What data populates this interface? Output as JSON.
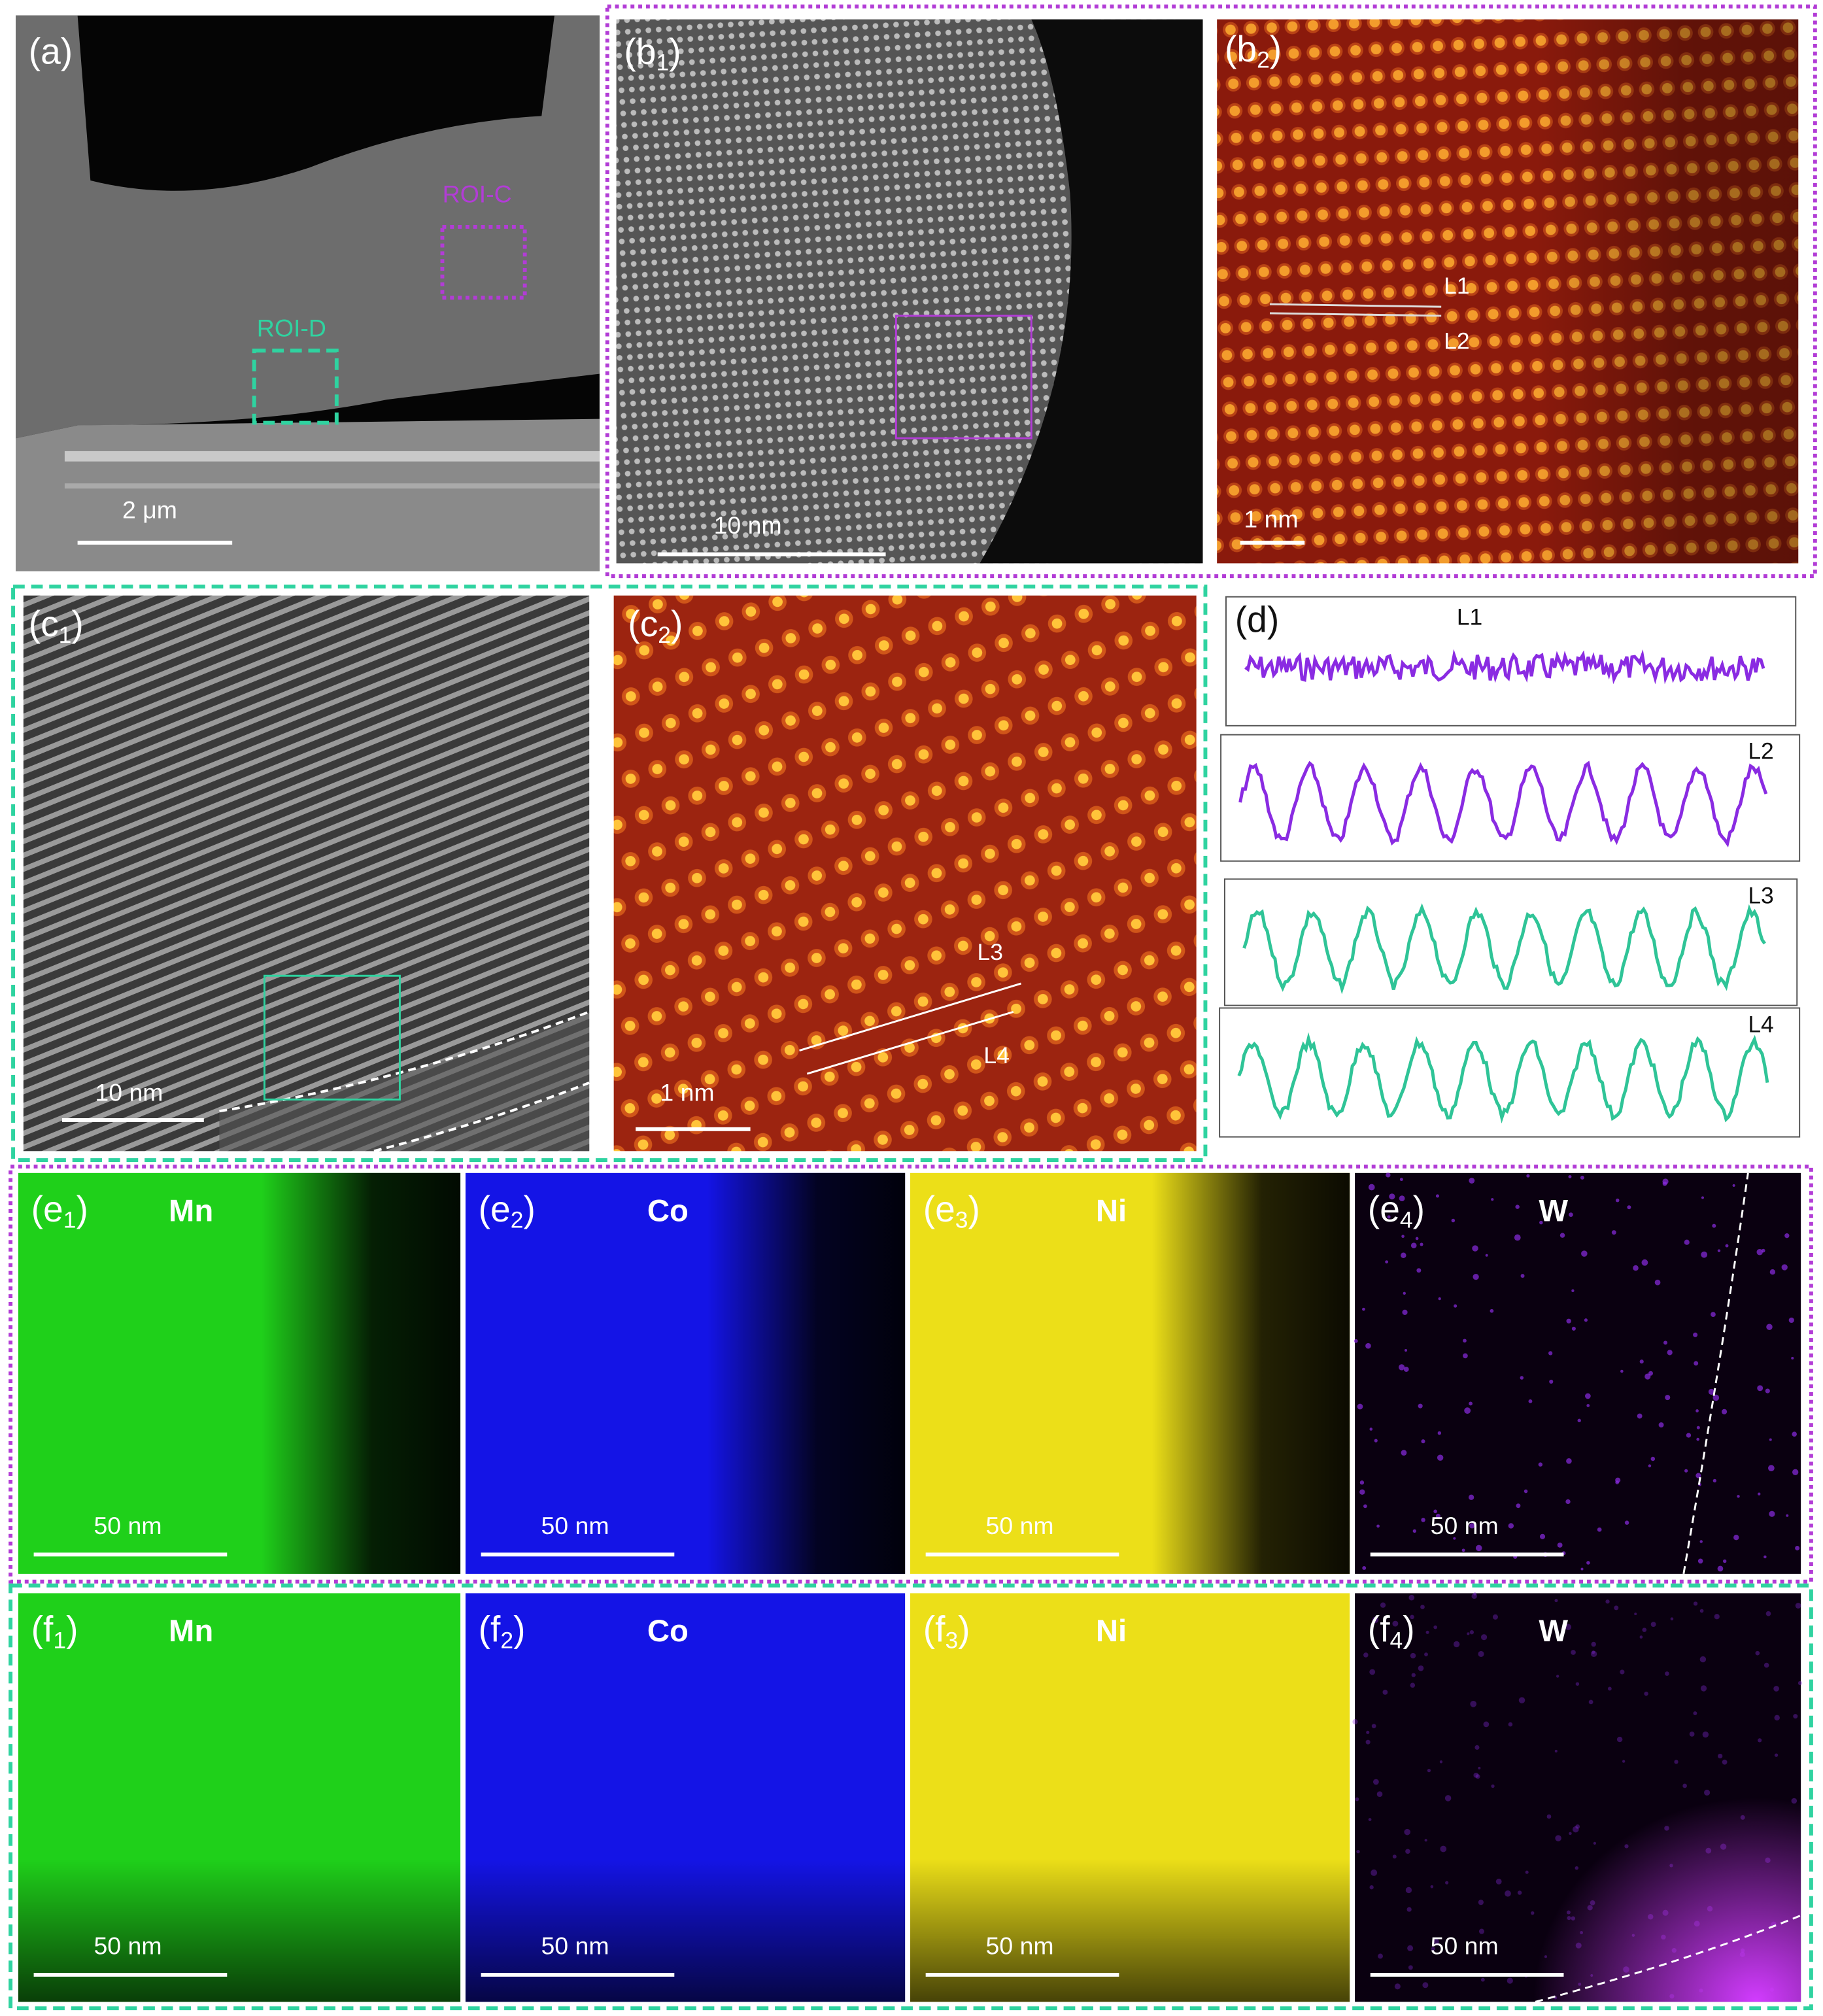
{
  "panels": {
    "a": {
      "label": [
        "(a)"
      ],
      "roi_c": "ROI-C",
      "roi_d": "ROI-D",
      "scale_bar": "2 μm"
    },
    "b1": {
      "label": [
        "(b",
        "1",
        ")"
      ],
      "scale_bar": "10 nm"
    },
    "b2": {
      "label": [
        "(b",
        "2",
        ")"
      ],
      "line_1": "L1",
      "line_2": "L2",
      "scale_bar": "1 nm"
    },
    "c1": {
      "label": [
        "(c",
        "1",
        ")"
      ],
      "scale_bar": "10 nm"
    },
    "c2": {
      "label": [
        "(c",
        "2",
        ")"
      ],
      "line_3": "L3",
      "line_4": "L4",
      "scale_bar": "1 nm"
    },
    "d": {
      "label": [
        "(d)"
      ],
      "profiles": [
        "L1",
        "L2",
        "L3",
        "L4"
      ]
    },
    "e": [
      {
        "label": [
          "(e",
          "1",
          ")"
        ],
        "element": "Mn",
        "scale_bar": "50 nm"
      },
      {
        "label": [
          "(e",
          "2",
          ")"
        ],
        "element": "Co",
        "scale_bar": "50 nm"
      },
      {
        "label": [
          "(e",
          "3",
          ")"
        ],
        "element": "Ni",
        "scale_bar": "50 nm"
      },
      {
        "label": [
          "(e",
          "4",
          ")"
        ],
        "element": "W",
        "scale_bar": "50 nm"
      }
    ],
    "f": [
      {
        "label": [
          "(f",
          "1",
          ")"
        ],
        "element": "Mn",
        "scale_bar": "50 nm"
      },
      {
        "label": [
          "(f",
          "2",
          ")"
        ],
        "element": "Co",
        "scale_bar": "50 nm"
      },
      {
        "label": [
          "(f",
          "3",
          ")"
        ],
        "element": "Ni",
        "scale_bar": "50 nm"
      },
      {
        "label": [
          "(f",
          "4",
          ")"
        ],
        "element": "W",
        "scale_bar": "50 nm"
      }
    ]
  }
}
